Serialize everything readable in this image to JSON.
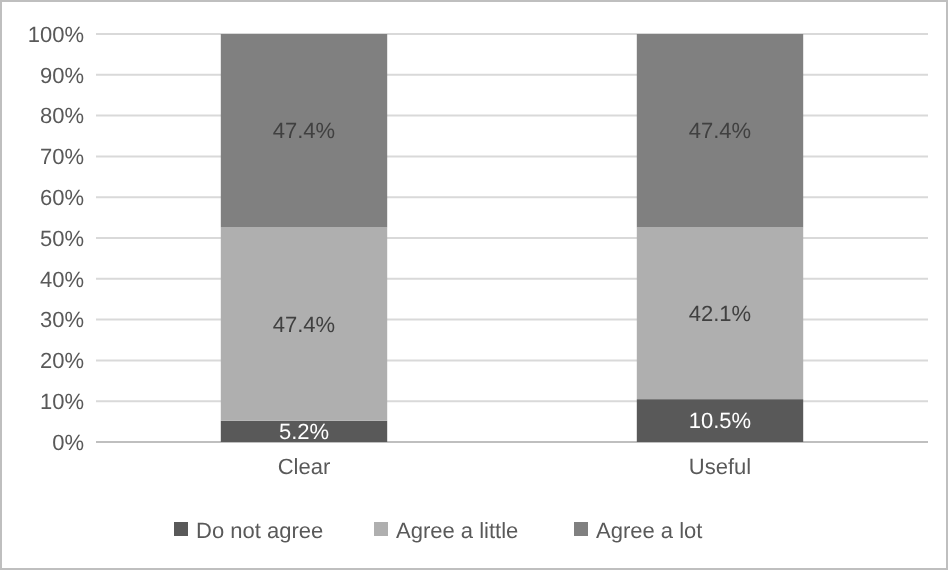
{
  "chart_data": {
    "type": "bar",
    "stacked": true,
    "categories": [
      "Clear",
      "Useful"
    ],
    "series": [
      {
        "name": "Do not agree",
        "color": "#595959",
        "values": [
          5.2,
          10.5
        ],
        "value_labels": [
          "5.2%",
          "10.5%"
        ]
      },
      {
        "name": "Agree a little",
        "color": "#afafaf",
        "values": [
          47.4,
          42.1
        ],
        "value_labels": [
          "47.4%",
          "42.1%"
        ]
      },
      {
        "name": "Agree a lot",
        "color": "#808080",
        "values": [
          47.4,
          47.4
        ],
        "value_labels": [
          "47.4%",
          "47.4%"
        ]
      }
    ],
    "ylim": [
      0,
      100
    ],
    "yticks": [
      {
        "value": 0,
        "label": "0%"
      },
      {
        "value": 10,
        "label": "10%"
      },
      {
        "value": 20,
        "label": "20%"
      },
      {
        "value": 30,
        "label": "30%"
      },
      {
        "value": 40,
        "label": "40%"
      },
      {
        "value": 50,
        "label": "50%"
      },
      {
        "value": 60,
        "label": "60%"
      },
      {
        "value": 70,
        "label": "70%"
      },
      {
        "value": 80,
        "label": "80%"
      },
      {
        "value": 90,
        "label": "90%"
      },
      {
        "value": 100,
        "label": "100%"
      }
    ],
    "grid": "y",
    "legend": "bottom"
  }
}
